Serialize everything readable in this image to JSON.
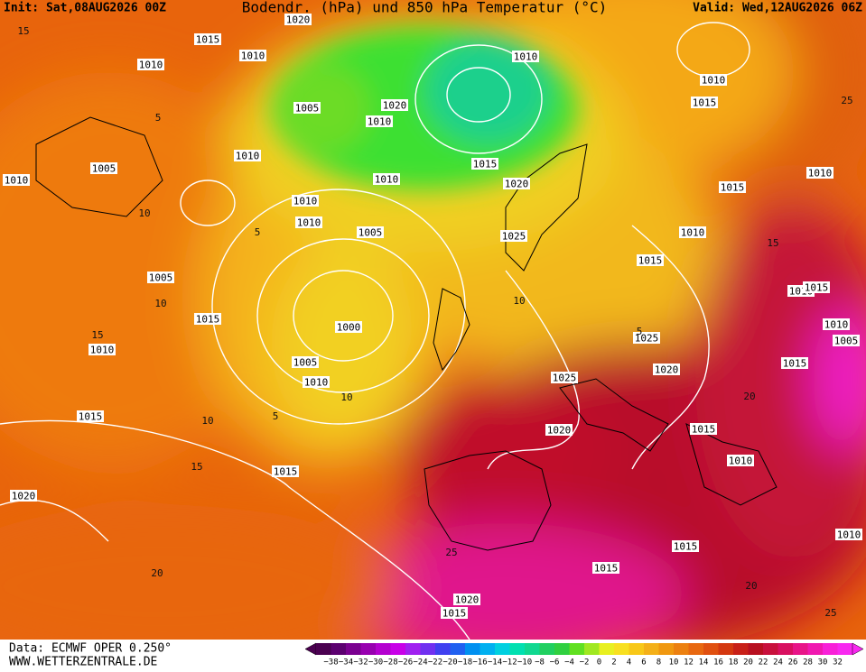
{
  "header": {
    "init": "Init: Sat,08AUG2026 00Z",
    "title": "Bodendr. (hPa) und 850 hPa Temperatur (°C)",
    "valid": "Valid: Wed,12AUG2026 06Z"
  },
  "isobar_labels": [
    "1020",
    "1015",
    "1010",
    "1010",
    "1010",
    "1005",
    "1020",
    "1010",
    "1010",
    "1015",
    "1010",
    "1015",
    "1005",
    "1010",
    "1020",
    "1010",
    "1010",
    "1015",
    "1010",
    "1010",
    "1005",
    "1025",
    "1010",
    "1015",
    "1005",
    "1010",
    "1015",
    "1015",
    "1000",
    "1010",
    "1025",
    "1005",
    "1010",
    "1005",
    "1015",
    "1020",
    "1010",
    "1025",
    "1015",
    "1020",
    "1015",
    "1010",
    "1015",
    "1020",
    "1010",
    "1015",
    "1015",
    "1020",
    "1015"
  ],
  "temperature_labels": [
    "15",
    "5",
    "10",
    "5",
    "10",
    "15",
    "10",
    "5",
    "15",
    "10",
    "20",
    "25",
    "20",
    "25",
    "15",
    "10",
    "5",
    "25",
    "20"
  ],
  "colorbar": {
    "ticks": [
      "−38",
      "−34",
      "−32",
      "−30",
      "−28",
      "−26",
      "−24",
      "−22",
      "−20",
      "−18",
      "−16",
      "−14",
      "−12",
      "−10",
      "−8",
      "−6",
      "−4",
      "−2",
      "0",
      "2",
      "4",
      "6",
      "8",
      "10",
      "12",
      "14",
      "16",
      "18",
      "20",
      "22",
      "24",
      "26",
      "28",
      "30",
      "32"
    ]
  },
  "footer": {
    "source": "Data: ECMWF OPER 0.250°",
    "website": "WWW.WETTERZENTRALE.DE"
  }
}
